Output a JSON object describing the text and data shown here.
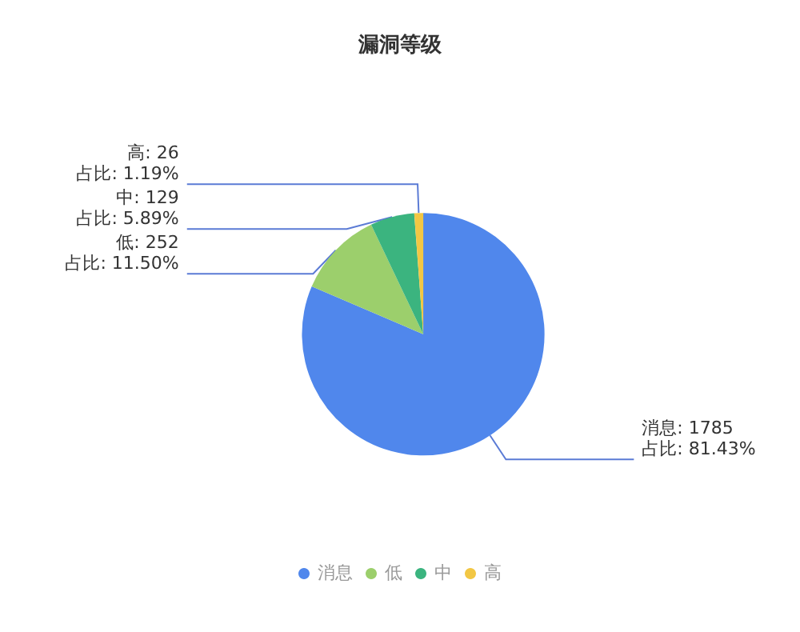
{
  "chart_data": {
    "type": "pie",
    "title": "漏洞等级",
    "categories": [
      "消息",
      "低",
      "中",
      "高"
    ],
    "values": [
      1785,
      252,
      129,
      26
    ],
    "colors": [
      "#5087ec",
      "#9ccf6c",
      "#3bb47f",
      "#f2c744"
    ],
    "value_labels": [
      "消息: 1785\n占比: 81.43%",
      "低: 252\n占比: 11.50%",
      "中: 129\n占比: 5.89%",
      "高: 26\n占比: 1.19%"
    ],
    "legend": "bottom"
  }
}
